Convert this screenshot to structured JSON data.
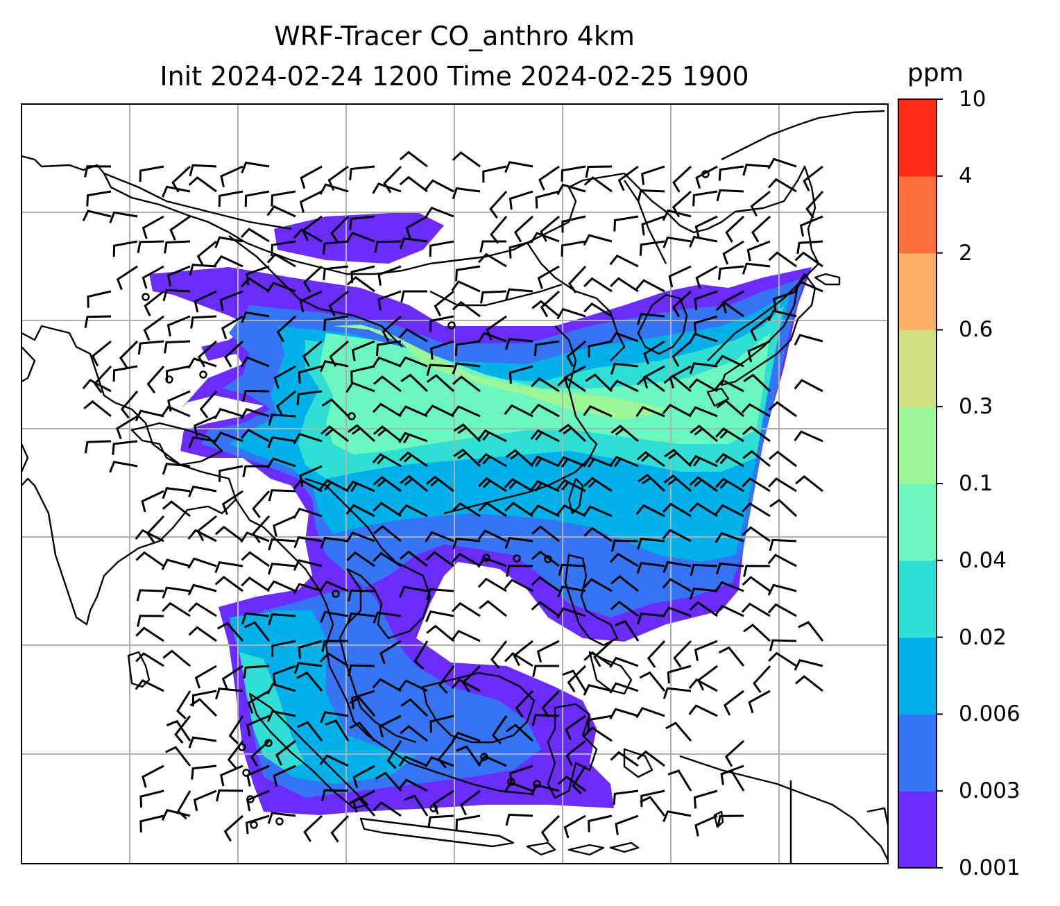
{
  "title": {
    "line1": "WRF-Tracer CO_anthro 4km",
    "line2": "Init 2024-02-24 1200 Time 2024-02-25 1900"
  },
  "colorbar": {
    "unit": "ppm",
    "levels": [
      "0.001",
      "0.003",
      "0.006",
      "0.02",
      "0.04",
      "0.1",
      "0.3",
      "0.6",
      "2",
      "4",
      "10"
    ],
    "colors": [
      "#6a2cff",
      "#3474f5",
      "#00b0e8",
      "#2fdfd4",
      "#6cf7c0",
      "#9ef796",
      "#cfe083",
      "#fdb063",
      "#ff6f3d",
      "#ff2a18"
    ]
  },
  "map": {
    "gridline_color": "#b0b0b0",
    "coastline_color": "#000000",
    "wind_barb_color": "#000000"
  }
}
